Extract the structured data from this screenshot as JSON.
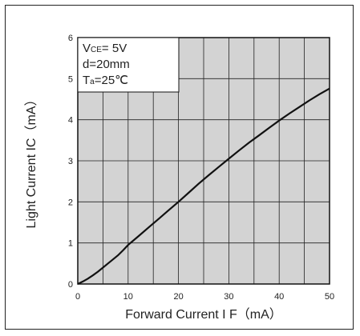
{
  "chart_data": {
    "type": "line",
    "xlabel": "Forward Current  I F（mA）",
    "ylabel": "Light Current  IC（mA）",
    "xlim": [
      0,
      50
    ],
    "ylim": [
      0,
      6
    ],
    "x_ticks": [
      "0",
      "10",
      "20",
      "30",
      "40",
      "50"
    ],
    "y_ticks": [
      "0",
      "1",
      "2",
      "3",
      "4",
      "5",
      "6"
    ],
    "grid": true,
    "plot_background": "#d3d3d3",
    "line_color": "#111111",
    "annotation": {
      "line1_prefix": "V",
      "line1_sub": "CE",
      "line1_suffix": "= 5V",
      "line2": "d=20mm",
      "line3_prefix": "T",
      "line3_sub": "a",
      "line3_suffix": "=25℃"
    },
    "series": [
      {
        "x": [
          0,
          1,
          2,
          3,
          4,
          5,
          6,
          7,
          8,
          9,
          10,
          12,
          14,
          16,
          18,
          20,
          22,
          24,
          26,
          28,
          30,
          32,
          34,
          36,
          38,
          40,
          42,
          44,
          46,
          48,
          50
        ],
        "y": [
          0,
          0.06,
          0.13,
          0.21,
          0.3,
          0.4,
          0.5,
          0.6,
          0.7,
          0.82,
          0.95,
          1.16,
          1.37,
          1.58,
          1.79,
          2.0,
          2.22,
          2.44,
          2.65,
          2.85,
          3.05,
          3.25,
          3.44,
          3.62,
          3.8,
          3.98,
          4.15,
          4.31,
          4.47,
          4.62,
          4.76
        ]
      }
    ]
  }
}
